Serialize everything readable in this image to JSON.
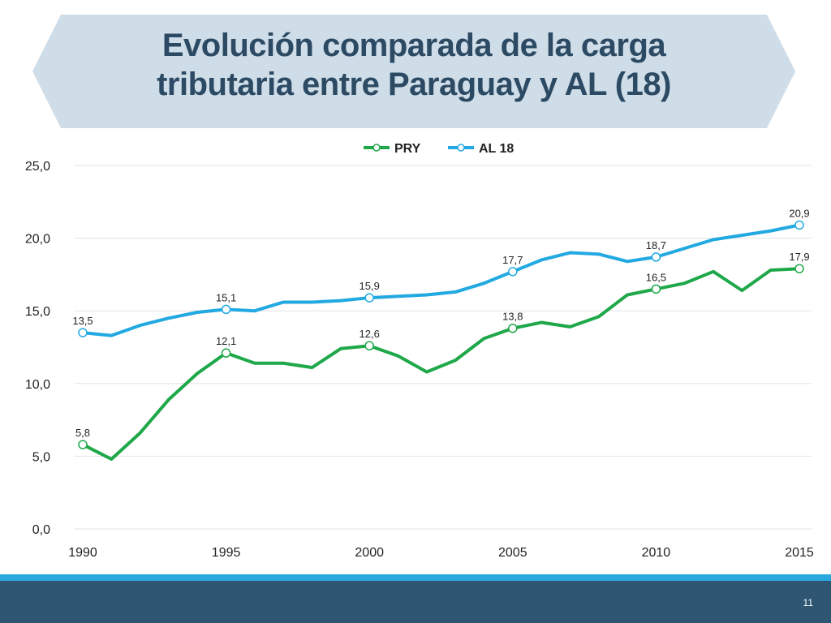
{
  "slide": {
    "title_line1": "Evolución comparada de la carga",
    "title_line2": "tributaria entre Paraguay y AL (18)",
    "page_number": "11"
  },
  "colors": {
    "banner": "#cfdde8",
    "title": "#2c4a63",
    "pry": "#1fa84a",
    "al18": "#22a9e1",
    "grid": "#e3e3e3",
    "footer": "#2e5672",
    "stripe": "#2aa8e0"
  },
  "chart_data": {
    "type": "line",
    "title": "",
    "xlabel": "",
    "ylabel": "",
    "ylim": [
      0,
      25
    ],
    "xlim": [
      1990,
      2015
    ],
    "yticks": [
      "0,0",
      "5,0",
      "10,0",
      "15,0",
      "20,0",
      "25,0"
    ],
    "xticks": [
      "1990",
      "1995",
      "2000",
      "2005",
      "2010",
      "2015"
    ],
    "legend_position": "top-center",
    "grid": true,
    "x": [
      1990,
      1991,
      1992,
      1993,
      1994,
      1995,
      1996,
      1997,
      1998,
      1999,
      2000,
      2001,
      2002,
      2003,
      2004,
      2005,
      2006,
      2007,
      2008,
      2009,
      2010,
      2011,
      2012,
      2013,
      2014,
      2015
    ],
    "series": [
      {
        "name": "PRY",
        "values": [
          5.8,
          4.8,
          6.6,
          8.9,
          10.7,
          12.1,
          11.4,
          11.4,
          11.1,
          12.4,
          12.6,
          11.9,
          10.8,
          11.6,
          13.1,
          13.8,
          14.2,
          13.9,
          14.6,
          16.1,
          16.5,
          16.9,
          17.7,
          16.4,
          17.8,
          17.9
        ],
        "labels": [
          {
            "x": 1990,
            "text": "5,8"
          },
          {
            "x": 1995,
            "text": "12,1"
          },
          {
            "x": 2000,
            "text": "12,6"
          },
          {
            "x": 2005,
            "text": "13,8"
          },
          {
            "x": 2010,
            "text": "16,5"
          },
          {
            "x": 2015,
            "text": "17,9"
          }
        ]
      },
      {
        "name": "AL 18",
        "values": [
          13.5,
          13.3,
          14.0,
          14.5,
          14.9,
          15.1,
          15.0,
          15.6,
          15.6,
          15.7,
          15.9,
          16.0,
          16.1,
          16.3,
          16.9,
          17.7,
          18.5,
          19.0,
          18.9,
          18.4,
          18.7,
          19.3,
          19.9,
          20.2,
          20.5,
          20.9
        ],
        "labels": [
          {
            "x": 1990,
            "text": "13,5"
          },
          {
            "x": 1995,
            "text": "15,1"
          },
          {
            "x": 2000,
            "text": "15,9"
          },
          {
            "x": 2005,
            "text": "17,7"
          },
          {
            "x": 2010,
            "text": "18,7"
          },
          {
            "x": 2015,
            "text": "20,9"
          }
        ]
      }
    ]
  }
}
